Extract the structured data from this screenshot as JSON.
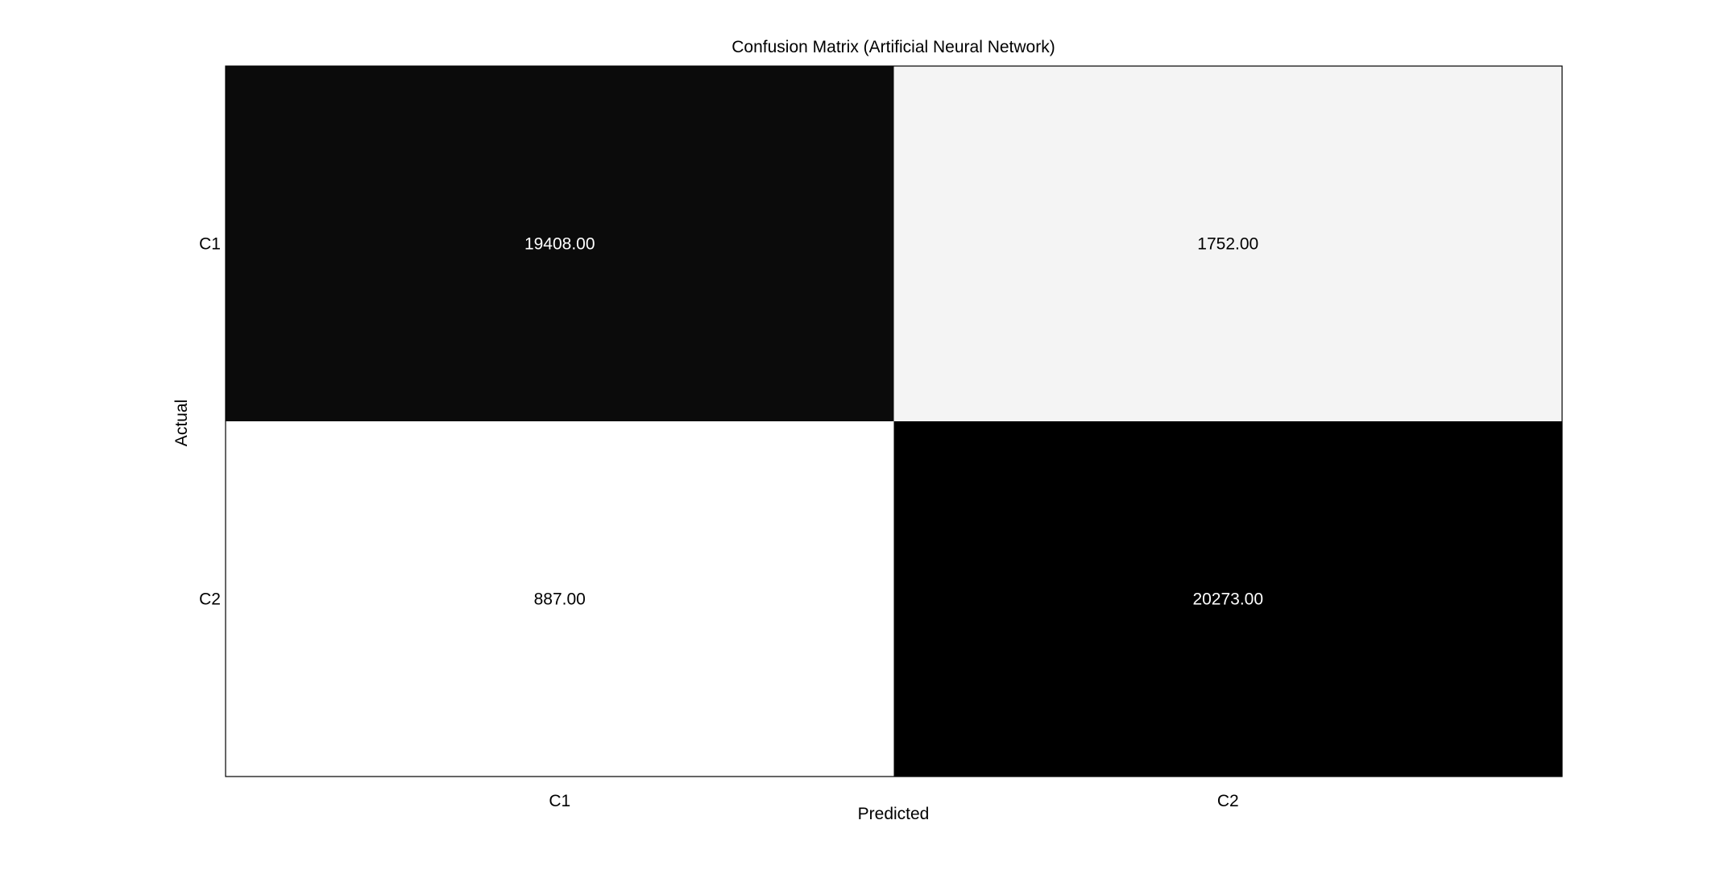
{
  "chart_data": {
    "type": "heatmap",
    "title": "Confusion Matrix (Artificial Neural Network)",
    "xlabel": "Predicted",
    "ylabel": "Actual",
    "x_categories": [
      "C1",
      "C2"
    ],
    "y_categories": [
      "C1",
      "C2"
    ],
    "values": [
      [
        19408.0,
        1752.0
      ],
      [
        887.0,
        20273.0
      ]
    ],
    "value_labels": [
      [
        "19408.00",
        "1752.00"
      ],
      [
        "887.00",
        "20273.00"
      ]
    ],
    "colormap": "gray (high values dark, low values light)",
    "grid": false,
    "legend": "none"
  }
}
